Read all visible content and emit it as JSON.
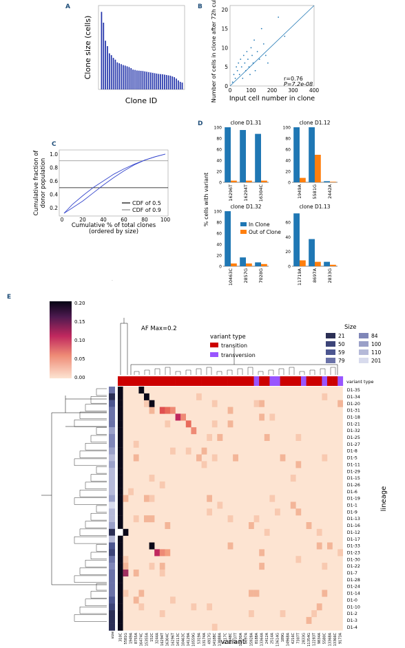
{
  "panels": {
    "A": {
      "letter": "A"
    },
    "B": {
      "letter": "B"
    },
    "C": {
      "letter": "C"
    },
    "D": {
      "letter": "D"
    },
    "E": {
      "letter": "E"
    }
  },
  "chart_data": [
    {
      "id": "A",
      "type": "bar",
      "xlabel": "Clone  ID",
      "ylabel": "Clone size (cells)",
      "ylim": [
        0,
        450
      ],
      "values": [
        430,
        370,
        270,
        240,
        200,
        190,
        175,
        165,
        150,
        145,
        140,
        135,
        132,
        128,
        124,
        118,
        110,
        108,
        105,
        104,
        103,
        102,
        100,
        98,
        96,
        94,
        92,
        90,
        88,
        86,
        85,
        84,
        82,
        80,
        78,
        76,
        72,
        68,
        60,
        50,
        42,
        38
      ]
    },
    {
      "id": "B",
      "type": "scatter",
      "xlabel": "Input cell number in clone",
      "ylabel": "Number of cells in clone after 72h culture",
      "xlim": [
        0,
        400
      ],
      "ylim": [
        0,
        400
      ],
      "xticks": [
        "0",
        "100",
        "200",
        "300",
        "400"
      ],
      "yticks": [
        "0",
        "5",
        "10",
        "15",
        "20"
      ],
      "annotation_r": "r=0.76",
      "annotation_p": "P=7.2e-08",
      "points": [
        [
          12,
          1
        ],
        [
          18,
          3
        ],
        [
          25,
          2
        ],
        [
          30,
          5
        ],
        [
          35,
          4
        ],
        [
          40,
          6
        ],
        [
          45,
          3
        ],
        [
          50,
          7
        ],
        [
          55,
          5
        ],
        [
          60,
          2
        ],
        [
          65,
          8
        ],
        [
          70,
          6
        ],
        [
          75,
          4
        ],
        [
          80,
          9
        ],
        [
          85,
          7
        ],
        [
          90,
          5
        ],
        [
          95,
          3
        ],
        [
          100,
          10
        ],
        [
          105,
          8
        ],
        [
          110,
          6
        ],
        [
          115,
          12
        ],
        [
          120,
          4
        ],
        [
          130,
          9
        ],
        [
          140,
          7
        ],
        [
          150,
          15
        ],
        [
          160,
          11
        ],
        [
          170,
          8
        ],
        [
          180,
          6
        ],
        [
          230,
          18
        ],
        [
          260,
          13
        ]
      ]
    },
    {
      "id": "C",
      "type": "line",
      "xlabel": "Cumulative % of total clones",
      "xlabel2": "(ordered by size)",
      "ylabel": "Cumulative fraction of",
      "ylabel2": "donor population",
      "xlim": [
        0,
        100
      ],
      "ylim": [
        0.1,
        1.0
      ],
      "xticks": [
        "0",
        "20",
        "40",
        "60",
        "80",
        "100"
      ],
      "yticks": [
        "0.2",
        "0.4",
        "0.6",
        "0.8",
        "1.0"
      ],
      "hlines": [
        0.5,
        0.9
      ],
      "legend": [
        "CDF of 0.5",
        "CDF of 0.9"
      ],
      "series": [
        {
          "values": [
            [
              2,
              0.12
            ],
            [
              10,
              0.25
            ],
            [
              20,
              0.38
            ],
            [
              30,
              0.5
            ],
            [
              40,
              0.6
            ],
            [
              50,
              0.7
            ],
            [
              60,
              0.78
            ],
            [
              70,
              0.85
            ],
            [
              80,
              0.91
            ],
            [
              90,
              0.96
            ],
            [
              100,
              1.0
            ]
          ]
        },
        {
          "values": [
            [
              2,
              0.12
            ],
            [
              10,
              0.2
            ],
            [
              20,
              0.3
            ],
            [
              30,
              0.42
            ],
            [
              40,
              0.54
            ],
            [
              50,
              0.65
            ],
            [
              60,
              0.75
            ],
            [
              70,
              0.84
            ],
            [
              80,
              0.91
            ],
            [
              90,
              0.96
            ],
            [
              100,
              1.0
            ]
          ]
        }
      ]
    },
    {
      "id": "D",
      "type": "bar",
      "ylabel": "% cells with variant",
      "legend": [
        "In Clone",
        "Out of Clone"
      ],
      "colors": {
        "in": "#1f77b4",
        "out": "#ff7f0e"
      },
      "subplots": [
        {
          "title": "clone D1.31",
          "categories": [
            "16296T",
            "16294T",
            "16304C"
          ],
          "in": [
            100,
            95,
            88
          ],
          "out": [
            3,
            3,
            3
          ],
          "yticks": [
            "0",
            "20",
            "40",
            "60",
            "80",
            "100"
          ]
        },
        {
          "title": "clone D1.12",
          "categories": [
            "1949A",
            "5581G",
            "2442A"
          ],
          "in": [
            100,
            100,
            2
          ],
          "out": [
            8,
            50,
            1
          ],
          "yticks": [
            "0",
            "20",
            "40",
            "60",
            "80",
            "100"
          ]
        },
        {
          "title": "clone D1.32",
          "categories": [
            "10463C",
            "2857G",
            "7028G"
          ],
          "in": [
            100,
            16,
            7
          ],
          "out": [
            5,
            5,
            4
          ],
          "yticks": [
            "0",
            "20",
            "40",
            "60",
            "80",
            "100"
          ]
        },
        {
          "title": "clone D1.13",
          "categories": [
            "11719A",
            "8697A",
            "2833G"
          ],
          "in": [
            72,
            37,
            6
          ],
          "out": [
            8,
            6,
            2
          ],
          "yticks": [
            "0",
            "20",
            "40",
            "60"
          ]
        }
      ]
    },
    {
      "id": "E",
      "type": "heatmap",
      "annotation": "AF Max=0.2",
      "xlabel": "variant",
      "ylabel": "lineage",
      "colorbar_ticks": [
        "0.20",
        "0.15",
        "0.10",
        "0.05",
        "0.00"
      ],
      "variant_type_title": "variant type",
      "variant_type_row_label": "variant type",
      "variant_types": [
        {
          "name": "transition",
          "color": "#cc0000"
        },
        {
          "name": "transversion",
          "color": "#9955ff"
        }
      ],
      "size_title": "Size",
      "size_legend": [
        {
          "label": "21",
          "color": "#2b2f55"
        },
        {
          "label": "50",
          "color": "#3c4478"
        },
        {
          "label": "59",
          "color": "#4c5690"
        },
        {
          "label": "79",
          "color": "#6a72a8"
        },
        {
          "label": "84",
          "color": "#7f86b8"
        },
        {
          "label": "100",
          "color": "#9aa0c8"
        },
        {
          "label": "110",
          "color": "#b5b9d8"
        },
        {
          "label": "201",
          "color": "#d8dbed"
        }
      ],
      "size_col_label": "size",
      "rows": [
        "D1-35",
        "D1-34",
        "D1-20",
        "D1-31",
        "D1-18",
        "D1-21",
        "D1-32",
        "D1-25",
        "D1-27",
        "D1-8",
        "D1-5",
        "D1-11",
        "D1-29",
        "D1-15",
        "D1-26",
        "D1-6",
        "D1-19",
        "D1-1",
        "D1-9",
        "D1-13",
        "D1-16",
        "D1-12",
        "D1-17",
        "D1-33",
        "D1-23",
        "D1-30",
        "D1-22",
        "D1-7",
        "D1-28",
        "D1-24",
        "D1-14",
        "D1-0",
        "D1-10",
        "D1-2",
        "D1-3",
        "D1-4"
      ],
      "columns": [
        "310C",
        "5581G",
        "1949A",
        "8755A",
        "16474C",
        "15355A",
        "152C",
        "3244A",
        "16294T",
        "16304C",
        "16296T",
        "14113C",
        "10463C",
        "14129A",
        "10559G",
        "5319A",
        "13174A",
        "4917G",
        "14188C",
        "13888A",
        "4117C",
        "8248C",
        "3737T",
        "10430A",
        "8697A",
        "15928A",
        "8188A",
        "13364A",
        "2412A",
        "2514A",
        "13614G",
        "189G",
        "14968A",
        "4216C",
        "7307T",
        "2833G",
        "11354G",
        "12283T",
        "9834A",
        "5580C",
        "13368A",
        "13366C",
        "9173A"
      ],
      "col_types": [
        "ti",
        "ti",
        "ti",
        "ti",
        "ti",
        "ti",
        "ti",
        "ti",
        "ti",
        "ti",
        "ti",
        "ti",
        "ti",
        "ti",
        "ti",
        "ti",
        "ti",
        "ti",
        "ti",
        "ti",
        "ti",
        "ti",
        "ti",
        "ti",
        "ti",
        "ti",
        "tv",
        "ti",
        "ti",
        "tv",
        "tv",
        "ti",
        "ti",
        "ti",
        "ti",
        "tv",
        "ti",
        "ti",
        "ti",
        "tv",
        "ti",
        "ti",
        "tv"
      ],
      "size_col": [
        3,
        0,
        2,
        3,
        3,
        3,
        5,
        4,
        4,
        5,
        6,
        5,
        6,
        6,
        6,
        6,
        5,
        7,
        6,
        6,
        5,
        0,
        6,
        2,
        1,
        3,
        4,
        3,
        3,
        3,
        3,
        2,
        1,
        0,
        0,
        0
      ]
    }
  ]
}
